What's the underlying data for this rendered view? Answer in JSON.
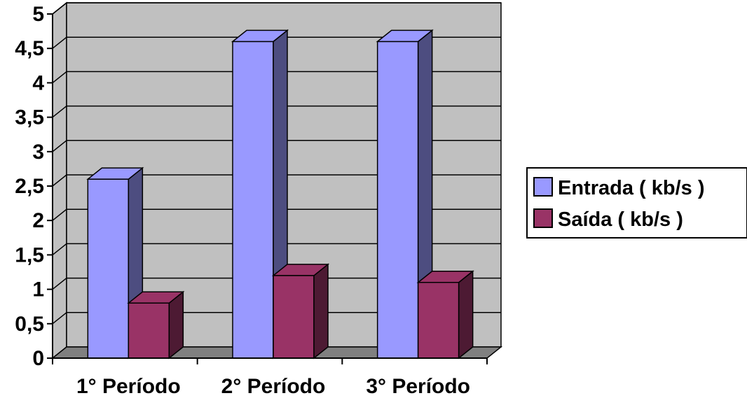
{
  "chart_data": {
    "type": "bar",
    "title": "",
    "xlabel": "",
    "ylabel": "",
    "ylim": [
      0,
      5
    ],
    "y_ticks": [
      "0",
      "0,5",
      "1",
      "1,5",
      "2",
      "2,5",
      "3",
      "3,5",
      "4",
      "4,5",
      "5"
    ],
    "categories": [
      "1° Período",
      "2° Período",
      "3° Período"
    ],
    "series": [
      {
        "name": "Entrada ( kb/s )",
        "values": [
          2.6,
          4.6,
          4.6
        ],
        "color": "#9999FF",
        "side_color": "#4D4D80"
      },
      {
        "name": "Saída ( kb/s )",
        "values": [
          0.8,
          1.2,
          1.1
        ],
        "color": "#993366",
        "side_color": "#4D1A33"
      }
    ],
    "grid": true,
    "plot_background": "#C0C0C0",
    "legend_position": "right"
  }
}
